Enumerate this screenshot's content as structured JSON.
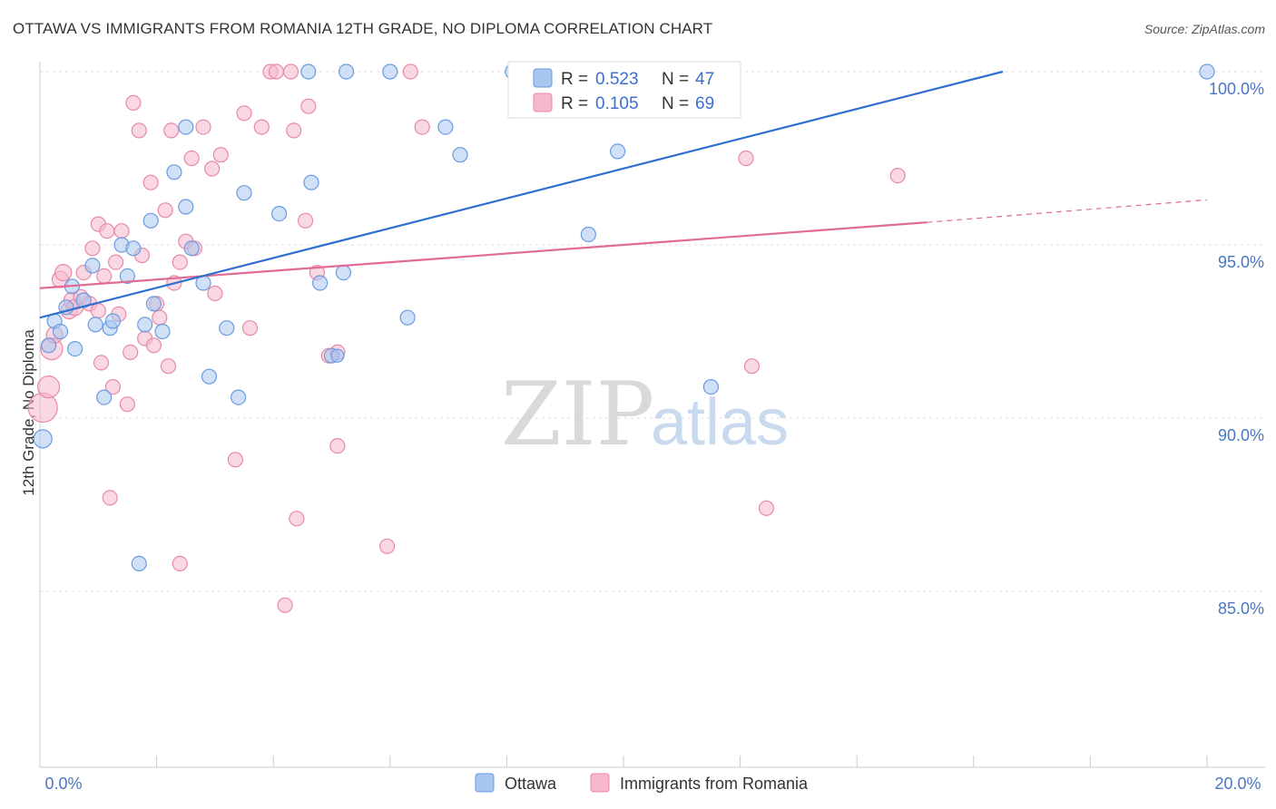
{
  "header": {
    "title": "OTTAWA VS IMMIGRANTS FROM ROMANIA 12TH GRADE, NO DIPLOMA CORRELATION CHART",
    "source": "Source: ZipAtlas.com"
  },
  "watermark": {
    "zip": "ZIP",
    "atlas": "atlas"
  },
  "legend": {
    "r_label": "R =",
    "n_label": "N =",
    "series": [
      {
        "r": "0.523",
        "n": "47",
        "color": "#a8c6f0",
        "line": "#2f6fd0"
      },
      {
        "r": "0.105",
        "n": "69",
        "color": "#f5b8cc",
        "line": "#e06b96"
      }
    ]
  },
  "chart_data": {
    "type": "scatter",
    "title": "OTTAWA VS IMMIGRANTS FROM ROMANIA 12TH GRADE, NO DIPLOMA CORRELATION CHART",
    "xlabel": "",
    "ylabel": "12th Grade, No Diploma",
    "xlim": [
      0,
      20
    ],
    "ylim": [
      80.5,
      100.5
    ],
    "x_tick_labels": [
      "0.0%",
      "20.0%"
    ],
    "y_ticks": [
      85,
      90,
      95,
      100
    ],
    "y_tick_labels": [
      "85.0%",
      "90.0%",
      "95.0%",
      "100.0%"
    ],
    "grid": true,
    "legend_position": "top-center",
    "series": [
      {
        "name": "Ottawa",
        "color": "#a8c6f0",
        "stroke": "#6b9be0",
        "trend": {
          "x": [
            0,
            16.5
          ],
          "y": [
            92.9,
            100.0
          ],
          "color": "#2f6fd0"
        },
        "points": [
          [
            0.05,
            89.4,
            10
          ],
          [
            0.15,
            92.1,
            8
          ],
          [
            0.25,
            92.8,
            8
          ],
          [
            0.35,
            92.5,
            8
          ],
          [
            0.45,
            93.2,
            8
          ],
          [
            0.55,
            93.8,
            8
          ],
          [
            0.6,
            92.0,
            8
          ],
          [
            0.75,
            93.4,
            8
          ],
          [
            0.9,
            94.4,
            8
          ],
          [
            0.95,
            92.7,
            8
          ],
          [
            1.1,
            90.6,
            8
          ],
          [
            1.2,
            92.6,
            8
          ],
          [
            1.25,
            92.8,
            8
          ],
          [
            1.4,
            95.0,
            8
          ],
          [
            1.5,
            94.1,
            8
          ],
          [
            1.6,
            94.9,
            8
          ],
          [
            1.7,
            85.8,
            8
          ],
          [
            1.8,
            92.7,
            8
          ],
          [
            1.9,
            95.7,
            8
          ],
          [
            1.95,
            93.3,
            8
          ],
          [
            2.1,
            92.5,
            8
          ],
          [
            2.3,
            97.1,
            8
          ],
          [
            2.5,
            98.4,
            8
          ],
          [
            2.5,
            96.1,
            8
          ],
          [
            2.6,
            94.9,
            8
          ],
          [
            2.8,
            93.9,
            8
          ],
          [
            2.9,
            91.2,
            8
          ],
          [
            3.2,
            92.6,
            8
          ],
          [
            3.4,
            90.6,
            8
          ],
          [
            3.5,
            96.5,
            8
          ],
          [
            4.1,
            95.9,
            8
          ],
          [
            4.6,
            100.0,
            8
          ],
          [
            4.65,
            96.8,
            8
          ],
          [
            4.8,
            93.9,
            8
          ],
          [
            5.0,
            91.8,
            8
          ],
          [
            5.2,
            94.2,
            8
          ],
          [
            5.25,
            100.0,
            8
          ],
          [
            6.0,
            100.0,
            8
          ],
          [
            6.3,
            92.9,
            8
          ],
          [
            6.95,
            98.4,
            8
          ],
          [
            7.2,
            97.6,
            8
          ],
          [
            8.1,
            100.0,
            8
          ],
          [
            9.4,
            95.3,
            8
          ],
          [
            9.9,
            97.7,
            8
          ],
          [
            11.5,
            90.9,
            8
          ],
          [
            20.0,
            100.0,
            8
          ],
          [
            5.1,
            91.8,
            7
          ]
        ]
      },
      {
        "name": "Immigrants from Romania",
        "color": "#f5b8cc",
        "stroke": "#e889a8",
        "trend": {
          "x": [
            0,
            15.2
          ],
          "y": [
            93.75,
            95.65
          ],
          "color": "#e06b96"
        },
        "trend_dashed": {
          "x": [
            15.2,
            20.0
          ],
          "y": [
            95.65,
            96.3
          ]
        },
        "points": [
          [
            0.05,
            90.3,
            16
          ],
          [
            0.15,
            90.9,
            12
          ],
          [
            0.2,
            92.0,
            12
          ],
          [
            0.25,
            92.4,
            9
          ],
          [
            0.35,
            94.0,
            9
          ],
          [
            0.4,
            94.2,
            9
          ],
          [
            0.5,
            93.1,
            9
          ],
          [
            0.55,
            93.4,
            9
          ],
          [
            0.6,
            93.2,
            9
          ],
          [
            0.7,
            93.5,
            8
          ],
          [
            0.75,
            94.2,
            8
          ],
          [
            0.85,
            93.3,
            8
          ],
          [
            0.9,
            94.9,
            8
          ],
          [
            1.0,
            93.1,
            8
          ],
          [
            1.0,
            95.6,
            8
          ],
          [
            1.05,
            91.6,
            8
          ],
          [
            1.1,
            94.1,
            8
          ],
          [
            1.15,
            95.4,
            8
          ],
          [
            1.2,
            87.7,
            8
          ],
          [
            1.25,
            90.9,
            8
          ],
          [
            1.3,
            94.5,
            8
          ],
          [
            1.35,
            93.0,
            8
          ],
          [
            1.4,
            95.4,
            8
          ],
          [
            1.5,
            90.4,
            8
          ],
          [
            1.55,
            91.9,
            8
          ],
          [
            1.6,
            99.1,
            8
          ],
          [
            1.7,
            98.3,
            8
          ],
          [
            1.75,
            94.7,
            8
          ],
          [
            1.8,
            92.3,
            8
          ],
          [
            1.9,
            96.8,
            8
          ],
          [
            1.95,
            92.1,
            8
          ],
          [
            2.0,
            93.3,
            8
          ],
          [
            2.05,
            92.9,
            8
          ],
          [
            2.15,
            96.0,
            8
          ],
          [
            2.2,
            91.5,
            8
          ],
          [
            2.25,
            98.3,
            8
          ],
          [
            2.3,
            93.9,
            8
          ],
          [
            2.4,
            94.5,
            8
          ],
          [
            2.5,
            95.1,
            8
          ],
          [
            2.6,
            97.5,
            8
          ],
          [
            2.65,
            94.9,
            8
          ],
          [
            2.8,
            98.4,
            8
          ],
          [
            2.95,
            97.2,
            8
          ],
          [
            3.0,
            93.6,
            8
          ],
          [
            3.1,
            97.6,
            8
          ],
          [
            3.35,
            88.8,
            8
          ],
          [
            3.5,
            98.8,
            8
          ],
          [
            3.6,
            92.6,
            8
          ],
          [
            3.8,
            98.4,
            8
          ],
          [
            3.95,
            100.0,
            8
          ],
          [
            4.05,
            100.0,
            8
          ],
          [
            4.2,
            84.6,
            8
          ],
          [
            4.3,
            100.0,
            8
          ],
          [
            4.35,
            98.3,
            8
          ],
          [
            4.4,
            87.1,
            8
          ],
          [
            4.55,
            95.7,
            8
          ],
          [
            4.6,
            99.0,
            8
          ],
          [
            4.75,
            94.2,
            8
          ],
          [
            4.95,
            91.8,
            8
          ],
          [
            5.1,
            91.9,
            8
          ],
          [
            5.1,
            89.2,
            8
          ],
          [
            5.95,
            86.3,
            8
          ],
          [
            6.35,
            100.0,
            8
          ],
          [
            6.55,
            98.4,
            8
          ],
          [
            12.1,
            97.5,
            8
          ],
          [
            12.2,
            91.5,
            8
          ],
          [
            12.45,
            87.4,
            8
          ],
          [
            14.7,
            97.0,
            8
          ],
          [
            2.4,
            85.8,
            8
          ]
        ]
      }
    ]
  }
}
